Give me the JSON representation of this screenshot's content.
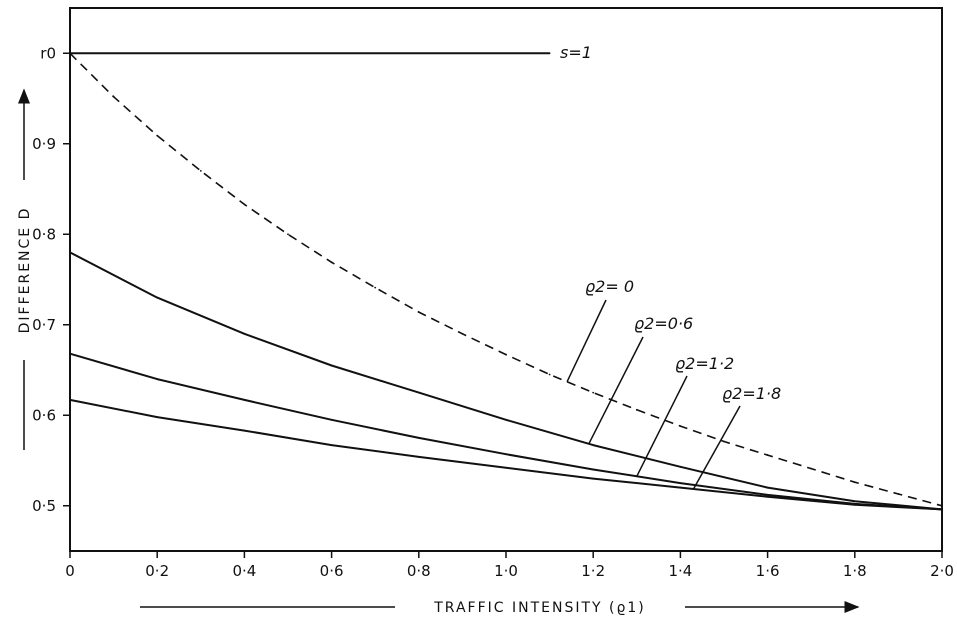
{
  "chart_data": {
    "type": "line",
    "xlabel": "TRAFFIC INTENSITY (ϱ1)",
    "ylabel": "DIFFERENCE D",
    "xlim": [
      0,
      2.0
    ],
    "ylim": [
      0.45,
      1.05
    ],
    "x_ticks": [
      0,
      0.2,
      0.4,
      0.6,
      0.8,
      1.0,
      1.2,
      1.4,
      1.6,
      1.8,
      2.0
    ],
    "x_tick_labels": [
      "0",
      "0·2",
      "0·4",
      "0·6",
      "0·8",
      "1·0",
      "1·2",
      "1·4",
      "1·6",
      "1·8",
      "2·0"
    ],
    "y_ticks": [
      0.5,
      0.6,
      0.7,
      0.8,
      0.9,
      1.0
    ],
    "y_tick_labels": [
      "0·5",
      "0·6",
      "0·7",
      "0·8",
      "0·9",
      "r0"
    ],
    "grid": false,
    "series": [
      {
        "name": "s=1",
        "style": "solid",
        "x": [
          0,
          1.1
        ],
        "y": [
          1.0,
          1.0
        ]
      },
      {
        "name": "ϱ2=0",
        "style": "dashed",
        "x": [
          0,
          0.1,
          0.2,
          0.3,
          0.4,
          0.5,
          0.6,
          0.7,
          0.8,
          0.9,
          1.0,
          1.1,
          1.2,
          1.3,
          1.4,
          1.5,
          1.6,
          1.7,
          1.8,
          1.9,
          2.0
        ],
        "y": [
          1.0,
          0.952,
          0.909,
          0.87,
          0.833,
          0.8,
          0.769,
          0.741,
          0.714,
          0.69,
          0.667,
          0.645,
          0.625,
          0.606,
          0.588,
          0.571,
          0.556,
          0.541,
          0.526,
          0.513,
          0.5
        ]
      },
      {
        "name": "ϱ2=0·6",
        "style": "solid",
        "x": [
          0,
          0.2,
          0.4,
          0.6,
          0.8,
          1.0,
          1.2,
          1.4,
          1.6,
          1.8,
          2.0
        ],
        "y": [
          0.78,
          0.73,
          0.69,
          0.655,
          0.625,
          0.595,
          0.567,
          0.543,
          0.52,
          0.505,
          0.496
        ]
      },
      {
        "name": "ϱ2=1·2",
        "style": "solid",
        "x": [
          0,
          0.2,
          0.4,
          0.6,
          0.8,
          1.0,
          1.2,
          1.4,
          1.6,
          1.8,
          2.0
        ],
        "y": [
          0.668,
          0.64,
          0.617,
          0.595,
          0.575,
          0.557,
          0.54,
          0.525,
          0.512,
          0.502,
          0.496
        ]
      },
      {
        "name": "ϱ2=1·8",
        "style": "solid",
        "x": [
          0,
          0.2,
          0.4,
          0.6,
          0.8,
          1.0,
          1.2,
          1.4,
          1.6,
          1.8,
          2.0
        ],
        "y": [
          0.617,
          0.598,
          0.583,
          0.567,
          0.554,
          0.542,
          0.53,
          0.52,
          0.51,
          0.501,
          0.496
        ]
      }
    ],
    "annotations": [
      {
        "text": "s=1",
        "series": "s=1"
      },
      {
        "text": "ϱ2= 0",
        "series": "ϱ2=0"
      },
      {
        "text": "ϱ2=0·6",
        "series": "ϱ2=0·6"
      },
      {
        "text": "ϱ2=1·2",
        "series": "ϱ2=1·2"
      },
      {
        "text": "ϱ2=1·8",
        "series": "ϱ2=1·8"
      }
    ]
  }
}
